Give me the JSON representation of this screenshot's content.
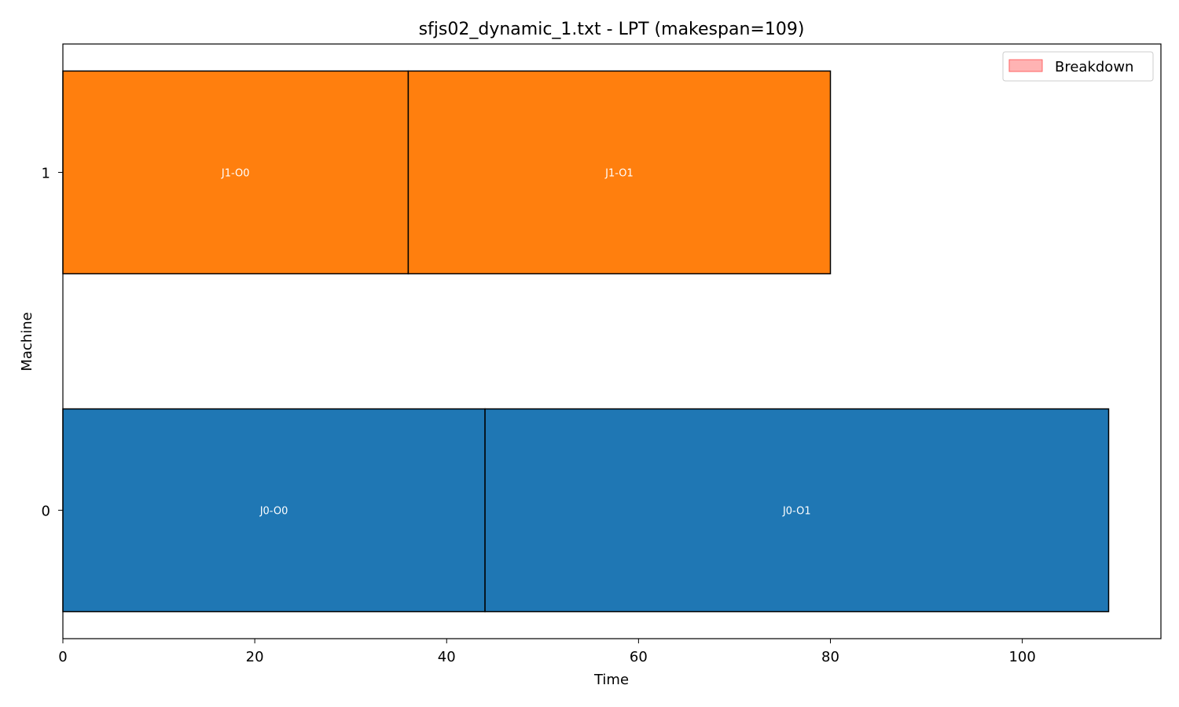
{
  "chart_data": {
    "type": "gantt",
    "title": "sfjs02_dynamic_1.txt - LPT (makespan=109)",
    "xlabel": "Time",
    "ylabel": "Machine",
    "xlim": [
      0,
      114.45
    ],
    "ylim": [
      -0.38,
      1.38
    ],
    "xticks": [
      0,
      20,
      40,
      60,
      80,
      100
    ],
    "yticks": [
      0,
      1
    ],
    "bar_height": 0.6,
    "grid": false,
    "legend": {
      "position": "top-right",
      "entries": [
        {
          "label": "Breakdown",
          "color": "#ff9999"
        }
      ]
    },
    "operations": [
      {
        "machine": 1,
        "start": 0,
        "end": 36,
        "label": "J1-O0",
        "color": "#ff7f0e"
      },
      {
        "machine": 1,
        "start": 36,
        "end": 80,
        "label": "J1-O1",
        "color": "#ff7f0e"
      },
      {
        "machine": 0,
        "start": 0,
        "end": 44,
        "label": "J0-O0",
        "color": "#1f77b4"
      },
      {
        "machine": 0,
        "start": 44,
        "end": 109,
        "label": "J0-O1",
        "color": "#1f77b4"
      }
    ]
  }
}
